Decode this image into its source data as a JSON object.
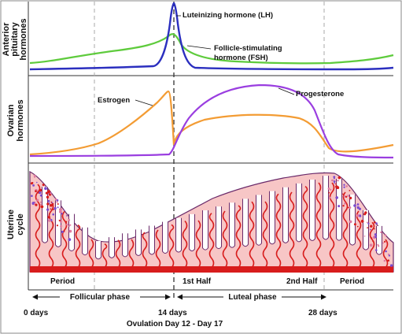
{
  "panels": {
    "pituitary": [
      "Anterior",
      "pituitary",
      "hormones"
    ],
    "ovarian": [
      "Ovarian",
      "hormones"
    ],
    "uterine": [
      "Uterine",
      "cycle"
    ]
  },
  "curves": {
    "lh": {
      "label": "Luteinizing hormone (LH)",
      "color": "#2b2fbf"
    },
    "fsh": {
      "label_line1": "Follicle-stimulating",
      "label_line2": "hormone (FSH)",
      "color": "#5ecb3c"
    },
    "estrogen": {
      "label": "Estrogen",
      "color": "#f39c34"
    },
    "progesterone": {
      "label": "Progesterone",
      "color": "#9a3ee0"
    }
  },
  "uterine": {
    "period_left": "Period",
    "first_half": "1st Half",
    "second_half": "2nd Half",
    "period_right": "Period",
    "tissue_fill": "#f7c6c6",
    "vessel_color": "#d81c1c",
    "outline_color": "#6a2a6a"
  },
  "phases": {
    "follicular": "Follicular phase",
    "luteal": "Luteal phase"
  },
  "axis": {
    "start": "0 days",
    "middle": "14 days",
    "end": "28 days",
    "ovulation": "Ovulation Day 12 - Day 17"
  }
}
